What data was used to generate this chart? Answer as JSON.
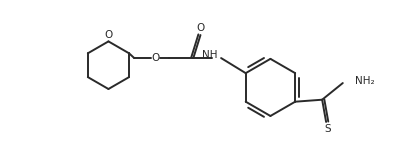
{
  "bg_color": "#ffffff",
  "line_color": "#2a2a2a",
  "line_width": 1.4,
  "fig_width": 4.06,
  "fig_height": 1.55,
  "dpi": 100,
  "xlim": [
    0,
    10.2
  ],
  "ylim": [
    0,
    3.8
  ]
}
